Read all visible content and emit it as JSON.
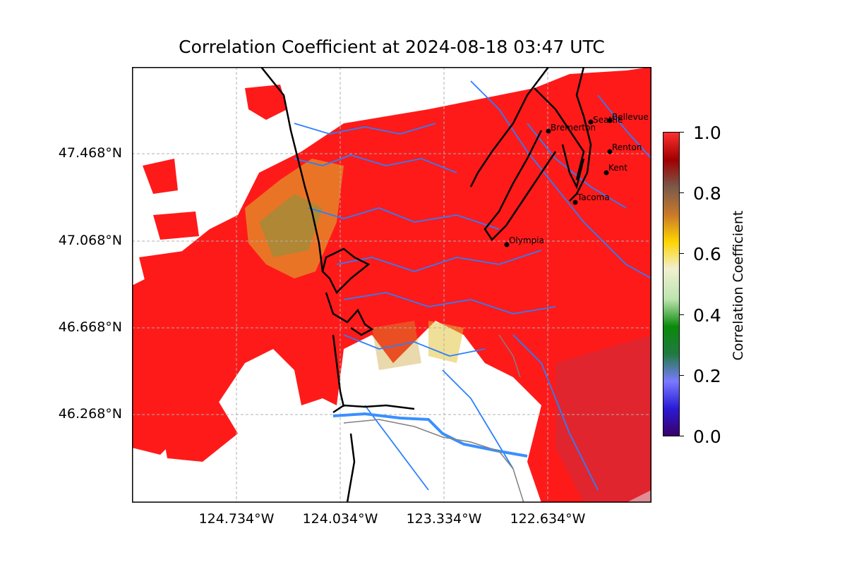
{
  "title": "Correlation Coefficient at 2024-08-18 03:47 UTC",
  "map": {
    "lat_labels": [
      "47.468°N",
      "47.068°N",
      "46.668°N",
      "46.268°N"
    ],
    "lon_labels": [
      "124.734°W",
      "124.034°W",
      "123.334°W",
      "122.634°W"
    ],
    "cities": [
      {
        "name": "Seattle"
      },
      {
        "name": "Bellevue"
      },
      {
        "name": "Bremerton"
      },
      {
        "name": "Renton"
      },
      {
        "name": "Kent"
      },
      {
        "name": "Tacoma"
      },
      {
        "name": "Olympia"
      }
    ],
    "colors": {
      "echo": "#ff1a1a",
      "river": "#2a7fff",
      "coast": "#000000",
      "border": "#808080",
      "grid": "#b0b0b0"
    }
  },
  "colorbar": {
    "label": "Correlation Coefficient",
    "ticks": [
      "0.0",
      "0.2",
      "0.4",
      "0.6",
      "0.8",
      "1.0"
    ],
    "colors": [
      "#3a006a",
      "#2a1bd6",
      "#7a7aff",
      "#207a40",
      "#0a8a0a",
      "#bde4b0",
      "#f0f0d0",
      "#ffd400",
      "#c8782a",
      "#7a5a4a",
      "#a00000",
      "#ff3030"
    ]
  }
}
